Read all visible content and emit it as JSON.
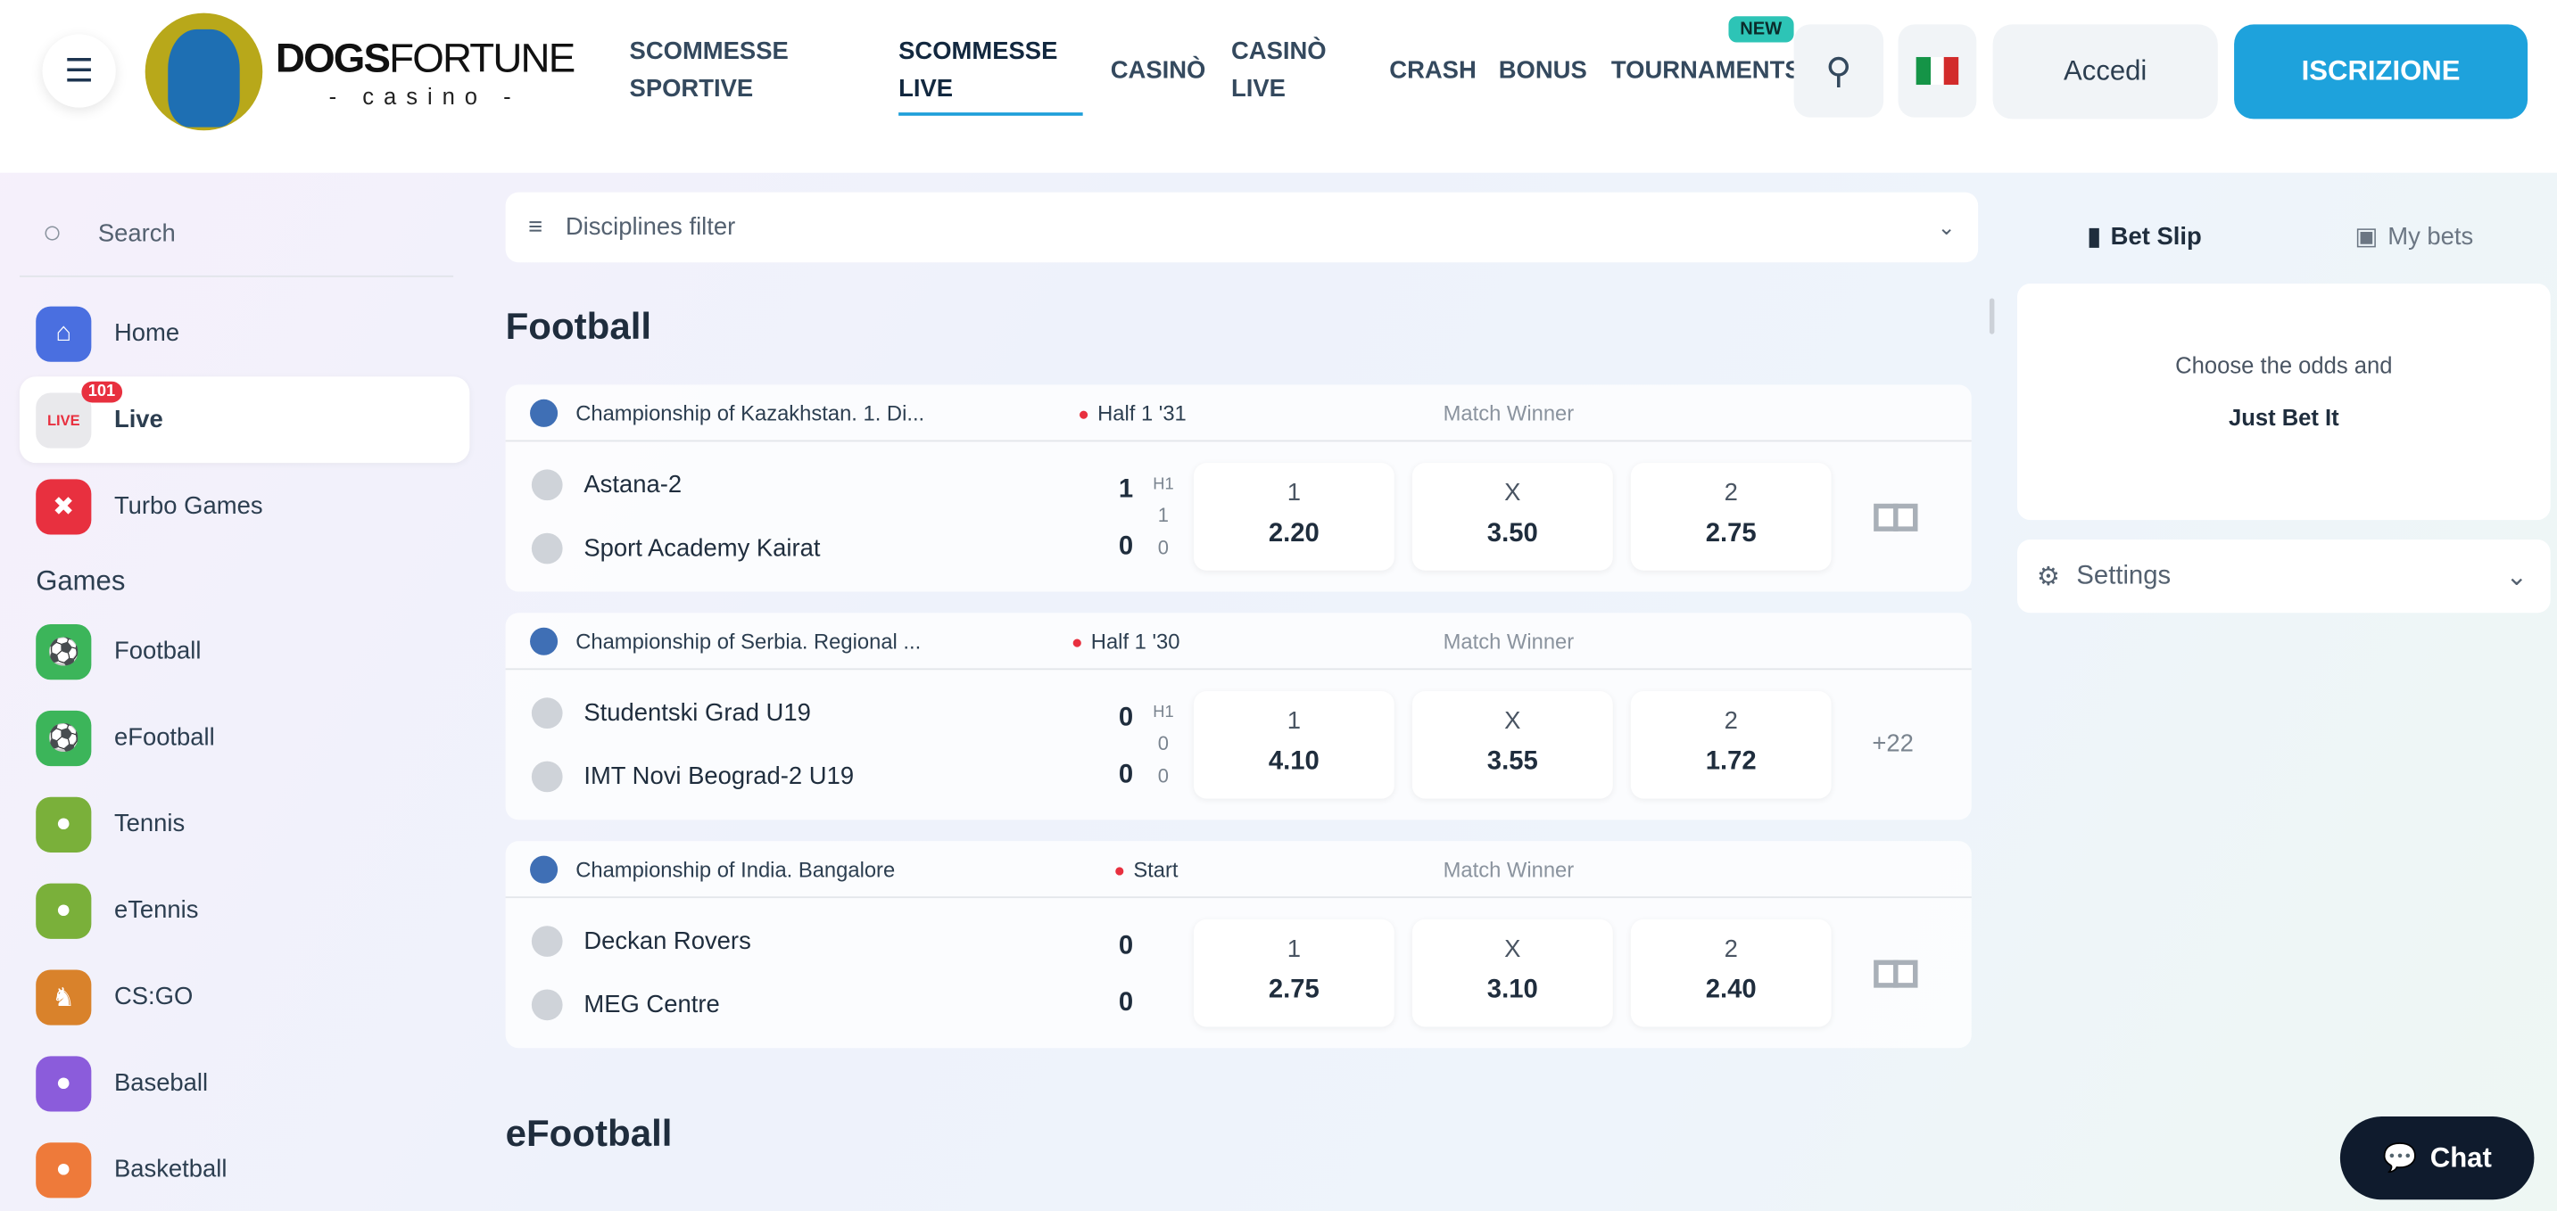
{
  "header": {
    "brand_main": "DOGS",
    "brand_second": "FORTUNE",
    "brand_sub": "- casino -",
    "nav": [
      {
        "line1": "SCOMMESSE",
        "line2": "SPORTIVE"
      },
      {
        "line1": "SCOMMESSE",
        "line2": "LIVE"
      },
      {
        "line1": "CASINÒ",
        "line2": ""
      },
      {
        "line1": "CASINÒ",
        "line2": "LIVE"
      },
      {
        "line1": "CRASH",
        "line2": ""
      },
      {
        "line1": "BONUS",
        "line2": ""
      },
      {
        "line1": "TOURNAMENTS",
        "line2": ""
      }
    ],
    "new_badge": "NEW",
    "login": "Accedi",
    "register": "ISCRIZIONE"
  },
  "sidebar": {
    "search": "Search",
    "items": [
      {
        "label": "Home"
      },
      {
        "label": "Live",
        "badge": "101"
      },
      {
        "label": "Turbo Games"
      }
    ],
    "games_heading": "Games",
    "games": [
      {
        "label": "Football"
      },
      {
        "label": "eFootball"
      },
      {
        "label": "Tennis"
      },
      {
        "label": "eTennis"
      },
      {
        "label": "CS:GO"
      },
      {
        "label": "Baseball"
      },
      {
        "label": "Basketball"
      }
    ]
  },
  "main": {
    "filter": "Disciplines filter",
    "section1": "Football",
    "section2": "eFootball",
    "matches": [
      {
        "league": "Championship of Kazakhstan. 1. Di...",
        "status": "Half 1 '31",
        "market": "Match Winner",
        "team1": "Astana-2",
        "team2": "Sport Academy Kairat",
        "score1": "1",
        "score2": "0",
        "period": "H1",
        "p1": "1",
        "p2": "0",
        "odds": [
          {
            "l": "1",
            "v": "2.20"
          },
          {
            "l": "X",
            "v": "3.50"
          },
          {
            "l": "2",
            "v": "2.75"
          }
        ],
        "more": ""
      },
      {
        "league": "Championship of Serbia. Regional ...",
        "status": "Half 1 '30",
        "market": "Match Winner",
        "team1": "Studentski Grad U19",
        "team2": "IMT Novi Beograd-2 U19",
        "score1": "0",
        "score2": "0",
        "period": "H1",
        "p1": "0",
        "p2": "0",
        "odds": [
          {
            "l": "1",
            "v": "4.10"
          },
          {
            "l": "X",
            "v": "3.55"
          },
          {
            "l": "2",
            "v": "1.72"
          }
        ],
        "more": "+22"
      },
      {
        "league": "Championship of India. Bangalore",
        "status": "Start",
        "market": "Match Winner",
        "team1": "Deckan Rovers",
        "team2": "MEG Centre",
        "score1": "0",
        "score2": "0",
        "odds": [
          {
            "l": "1",
            "v": "2.75"
          },
          {
            "l": "X",
            "v": "3.10"
          },
          {
            "l": "2",
            "v": "2.40"
          }
        ],
        "more": ""
      }
    ]
  },
  "right": {
    "bet_slip": "Bet Slip",
    "my_bets": "My bets",
    "prompt": "Choose the odds and",
    "cta": "Just Bet It",
    "settings": "Settings"
  },
  "chat": "Chat"
}
